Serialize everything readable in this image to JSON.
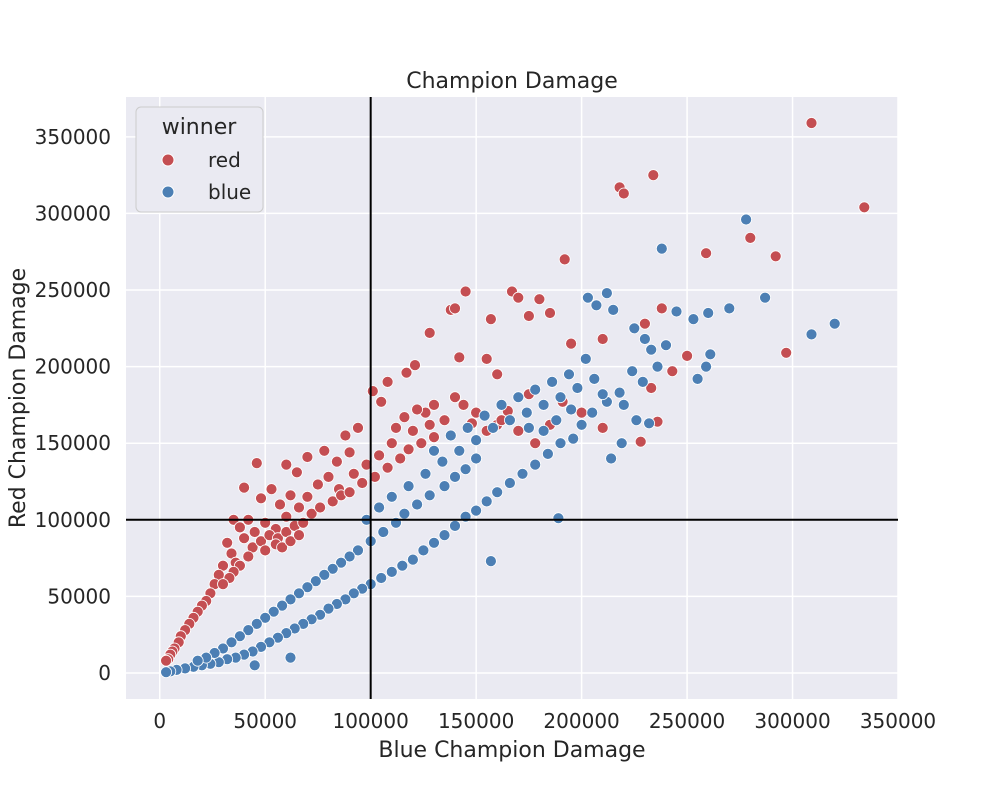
{
  "chart_data": {
    "type": "scatter",
    "title": "Champion Damage",
    "xlabel": "Blue Champion Damage",
    "ylabel": "Red Champion Damage",
    "xlim": [
      -16000,
      350000
    ],
    "ylim": [
      -17000,
      376000
    ],
    "x_ticks": [
      0,
      50000,
      100000,
      150000,
      200000,
      250000,
      300000,
      350000
    ],
    "y_ticks": [
      0,
      50000,
      100000,
      150000,
      200000,
      250000,
      300000,
      350000
    ],
    "grid": true,
    "reference_lines": {
      "x": 100000,
      "y": 100000
    },
    "legend": {
      "title": "winner",
      "placement": "top-left",
      "entries": [
        {
          "label": "red",
          "color": "#c44e52"
        },
        {
          "label": "blue",
          "color": "#4c7fb4"
        }
      ]
    },
    "series": [
      {
        "name": "red",
        "color": "#c44e52",
        "values": [
          [
            309000,
            359000
          ],
          [
            334000,
            304000
          ],
          [
            234000,
            325000
          ],
          [
            218000,
            317000
          ],
          [
            220000,
            313000
          ],
          [
            280000,
            284000
          ],
          [
            292000,
            272000
          ],
          [
            259000,
            274000
          ],
          [
            192000,
            270000
          ],
          [
            297000,
            209000
          ],
          [
            145000,
            249000
          ],
          [
            167000,
            249000
          ],
          [
            170000,
            245000
          ],
          [
            180000,
            244000
          ],
          [
            138000,
            237000
          ],
          [
            140000,
            238000
          ],
          [
            157000,
            231000
          ],
          [
            175000,
            233000
          ],
          [
            185000,
            235000
          ],
          [
            128000,
            222000
          ],
          [
            238000,
            238000
          ],
          [
            230000,
            228000
          ],
          [
            250000,
            207000
          ],
          [
            243000,
            197000
          ],
          [
            233000,
            186000
          ],
          [
            210000,
            218000
          ],
          [
            195000,
            215000
          ],
          [
            155000,
            205000
          ],
          [
            160000,
            195000
          ],
          [
            142000,
            206000
          ],
          [
            117000,
            196000
          ],
          [
            121000,
            201000
          ],
          [
            108000,
            190000
          ],
          [
            101000,
            184000
          ],
          [
            105000,
            177000
          ],
          [
            140000,
            180000
          ],
          [
            130000,
            175000
          ],
          [
            126000,
            170000
          ],
          [
            175000,
            182000
          ],
          [
            165000,
            171000
          ],
          [
            191000,
            177000
          ],
          [
            200000,
            170000
          ],
          [
            210000,
            160000
          ],
          [
            236000,
            164000
          ],
          [
            228000,
            151000
          ],
          [
            46000,
            137000
          ],
          [
            60000,
            136000
          ],
          [
            65000,
            131000
          ],
          [
            70000,
            141000
          ],
          [
            78000,
            145000
          ],
          [
            88000,
            155000
          ],
          [
            94000,
            160000
          ],
          [
            90000,
            144000
          ],
          [
            84000,
            138000
          ],
          [
            40000,
            121000
          ],
          [
            48000,
            114000
          ],
          [
            53000,
            120000
          ],
          [
            57000,
            110000
          ],
          [
            62000,
            116000
          ],
          [
            66000,
            108000
          ],
          [
            35000,
            100000
          ],
          [
            38000,
            95000
          ],
          [
            42000,
            100000
          ],
          [
            45000,
            92000
          ],
          [
            50000,
            98000
          ],
          [
            55000,
            94000
          ],
          [
            60000,
            102000
          ],
          [
            70000,
            115000
          ],
          [
            75000,
            123000
          ],
          [
            80000,
            128000
          ],
          [
            85000,
            120000
          ],
          [
            92000,
            130000
          ],
          [
            98000,
            136000
          ],
          [
            110000,
            150000
          ],
          [
            120000,
            158000
          ],
          [
            135000,
            165000
          ],
          [
            150000,
            170000
          ],
          [
            160000,
            162000
          ],
          [
            170000,
            158000
          ],
          [
            185000,
            162000
          ],
          [
            32000,
            85000
          ],
          [
            34000,
            78000
          ],
          [
            36000,
            72000
          ],
          [
            30000,
            70000
          ],
          [
            28000,
            64000
          ],
          [
            26000,
            58000
          ],
          [
            24000,
            52000
          ],
          [
            22000,
            47000
          ],
          [
            20000,
            44000
          ],
          [
            18000,
            40000
          ],
          [
            16000,
            36000
          ],
          [
            14000,
            32000
          ],
          [
            12000,
            28000
          ],
          [
            10000,
            24000
          ],
          [
            9000,
            20000
          ],
          [
            7000,
            16000
          ],
          [
            6000,
            14000
          ],
          [
            5000,
            12000
          ],
          [
            4000,
            9000
          ],
          [
            3000,
            8000
          ],
          [
            40000,
            88000
          ],
          [
            44000,
            82000
          ],
          [
            48000,
            86000
          ],
          [
            52000,
            90000
          ],
          [
            56000,
            88000
          ],
          [
            60000,
            92000
          ],
          [
            64000,
            96000
          ],
          [
            68000,
            98000
          ],
          [
            72000,
            104000
          ],
          [
            76000,
            108000
          ],
          [
            82000,
            112000
          ],
          [
            86000,
            116000
          ],
          [
            90000,
            118000
          ],
          [
            96000,
            124000
          ],
          [
            102000,
            128000
          ],
          [
            108000,
            134000
          ],
          [
            114000,
            140000
          ],
          [
            118000,
            146000
          ],
          [
            124000,
            150000
          ],
          [
            130000,
            154000
          ],
          [
            42000,
            76000
          ],
          [
            38000,
            70000
          ],
          [
            35000,
            66000
          ],
          [
            33000,
            62000
          ],
          [
            30000,
            58000
          ],
          [
            50000,
            80000
          ],
          [
            55000,
            84000
          ],
          [
            58000,
            82000
          ],
          [
            62000,
            86000
          ],
          [
            66000,
            90000
          ],
          [
            104000,
            142000
          ],
          [
            112000,
            160000
          ],
          [
            116000,
            167000
          ],
          [
            122000,
            172000
          ],
          [
            128000,
            162000
          ],
          [
            144000,
            175000
          ],
          [
            148000,
            163000
          ],
          [
            155000,
            158000
          ],
          [
            162000,
            165000
          ],
          [
            178000,
            150000
          ]
        ]
      },
      {
        "name": "blue",
        "color": "#4c7fb4",
        "values": [
          [
            278000,
            296000
          ],
          [
            238000,
            277000
          ],
          [
            287000,
            245000
          ],
          [
            320000,
            228000
          ],
          [
            309000,
            221000
          ],
          [
            270000,
            238000
          ],
          [
            260000,
            235000
          ],
          [
            253000,
            231000
          ],
          [
            245000,
            236000
          ],
          [
            212000,
            248000
          ],
          [
            203000,
            245000
          ],
          [
            207000,
            240000
          ],
          [
            215000,
            237000
          ],
          [
            225000,
            225000
          ],
          [
            230000,
            218000
          ],
          [
            233000,
            211000
          ],
          [
            240000,
            214000
          ],
          [
            261000,
            208000
          ],
          [
            259000,
            200000
          ],
          [
            255000,
            192000
          ],
          [
            236000,
            200000
          ],
          [
            224000,
            197000
          ],
          [
            229000,
            190000
          ],
          [
            218000,
            183000
          ],
          [
            212000,
            177000
          ],
          [
            205000,
            170000
          ],
          [
            200000,
            162000
          ],
          [
            196000,
            153000
          ],
          [
            190000,
            150000
          ],
          [
            184000,
            143000
          ],
          [
            178000,
            136000
          ],
          [
            172000,
            130000
          ],
          [
            166000,
            124000
          ],
          [
            160000,
            118000
          ],
          [
            155000,
            112000
          ],
          [
            150000,
            106000
          ],
          [
            145000,
            102000
          ],
          [
            189000,
            101000
          ],
          [
            157000,
            73000
          ],
          [
            140000,
            96000
          ],
          [
            135000,
            90000
          ],
          [
            130000,
            85000
          ],
          [
            125000,
            80000
          ],
          [
            120000,
            74000
          ],
          [
            115000,
            70000
          ],
          [
            110000,
            66000
          ],
          [
            105000,
            62000
          ],
          [
            100000,
            58000
          ],
          [
            96000,
            55000
          ],
          [
            92000,
            52000
          ],
          [
            88000,
            48000
          ],
          [
            84000,
            45000
          ],
          [
            80000,
            42000
          ],
          [
            76000,
            38000
          ],
          [
            72000,
            35000
          ],
          [
            68000,
            32000
          ],
          [
            64000,
            29000
          ],
          [
            60000,
            26000
          ],
          [
            56000,
            23000
          ],
          [
            52000,
            20000
          ],
          [
            48000,
            17000
          ],
          [
            44000,
            14000
          ],
          [
            40000,
            12000
          ],
          [
            36000,
            10000
          ],
          [
            32000,
            9000
          ],
          [
            28000,
            7000
          ],
          [
            24000,
            6000
          ],
          [
            20000,
            5000
          ],
          [
            16000,
            4000
          ],
          [
            12000,
            3000
          ],
          [
            8000,
            2000
          ],
          [
            5000,
            1000
          ],
          [
            3000,
            500
          ],
          [
            45000,
            5000
          ],
          [
            62000,
            10000
          ],
          [
            98000,
            100000
          ],
          [
            104000,
            108000
          ],
          [
            110000,
            115000
          ],
          [
            118000,
            122000
          ],
          [
            126000,
            130000
          ],
          [
            134000,
            138000
          ],
          [
            142000,
            145000
          ],
          [
            150000,
            152000
          ],
          [
            158000,
            160000
          ],
          [
            166000,
            165000
          ],
          [
            174000,
            170000
          ],
          [
            182000,
            175000
          ],
          [
            190000,
            180000
          ],
          [
            198000,
            186000
          ],
          [
            206000,
            192000
          ],
          [
            150000,
            140000
          ],
          [
            145000,
            133000
          ],
          [
            140000,
            128000
          ],
          [
            135000,
            122000
          ],
          [
            128000,
            116000
          ],
          [
            122000,
            110000
          ],
          [
            116000,
            104000
          ],
          [
            112000,
            98000
          ],
          [
            106000,
            92000
          ],
          [
            100000,
            86000
          ],
          [
            94000,
            80000
          ],
          [
            90000,
            76000
          ],
          [
            86000,
            72000
          ],
          [
            82000,
            68000
          ],
          [
            78000,
            64000
          ],
          [
            74000,
            60000
          ],
          [
            70000,
            56000
          ],
          [
            66000,
            52000
          ],
          [
            62000,
            48000
          ],
          [
            58000,
            44000
          ],
          [
            54000,
            40000
          ],
          [
            50000,
            36000
          ],
          [
            46000,
            32000
          ],
          [
            42000,
            28000
          ],
          [
            38000,
            24000
          ],
          [
            34000,
            20000
          ],
          [
            30000,
            16000
          ],
          [
            26000,
            13000
          ],
          [
            22000,
            10000
          ],
          [
            18000,
            8000
          ],
          [
            130000,
            145000
          ],
          [
            138000,
            155000
          ],
          [
            146000,
            160000
          ],
          [
            154000,
            168000
          ],
          [
            162000,
            175000
          ],
          [
            170000,
            180000
          ],
          [
            178000,
            185000
          ],
          [
            186000,
            190000
          ],
          [
            194000,
            195000
          ],
          [
            202000,
            205000
          ],
          [
            175000,
            160000
          ],
          [
            182000,
            158000
          ],
          [
            188000,
            165000
          ],
          [
            195000,
            172000
          ],
          [
            210000,
            182000
          ],
          [
            220000,
            175000
          ],
          [
            226000,
            165000
          ],
          [
            232000,
            163000
          ],
          [
            219000,
            150000
          ],
          [
            214000,
            140000
          ]
        ]
      }
    ]
  }
}
